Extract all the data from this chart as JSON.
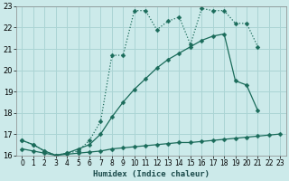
{
  "xlabel": "Humidex (Indice chaleur)",
  "bg_color": "#cceaea",
  "grid_color": "#aad4d4",
  "line_color": "#1a6b5a",
  "xlim": [
    -0.5,
    23.5
  ],
  "ylim": [
    16,
    23
  ],
  "yticks": [
    16,
    17,
    18,
    19,
    20,
    21,
    22,
    23
  ],
  "xticks": [
    0,
    1,
    2,
    3,
    4,
    5,
    6,
    7,
    8,
    9,
    10,
    11,
    12,
    13,
    14,
    15,
    16,
    17,
    18,
    19,
    20,
    21,
    22,
    23
  ],
  "line1_x": [
    0,
    1,
    2,
    3,
    4,
    5,
    6,
    7,
    8,
    9,
    10,
    11,
    12,
    13,
    14,
    15,
    16,
    17,
    18,
    19,
    20,
    21,
    22,
    23
  ],
  "line1_y": [
    16.7,
    16.5,
    16.2,
    16.0,
    16.1,
    16.2,
    16.7,
    17.6,
    20.7,
    20.7,
    22.8,
    22.8,
    21.9,
    22.3,
    22.5,
    21.2,
    22.9,
    22.8,
    22.8,
    22.2,
    22.2,
    21.1,
    null,
    null
  ],
  "line2_x": [
    0,
    1,
    2,
    3,
    4,
    5,
    6,
    7,
    8,
    9,
    10,
    11,
    12,
    13,
    14,
    15,
    16,
    17,
    18,
    19,
    20,
    21,
    22,
    23
  ],
  "line2_y": [
    16.7,
    16.5,
    16.2,
    16.0,
    16.1,
    16.3,
    16.5,
    17.0,
    17.8,
    18.5,
    19.1,
    19.6,
    20.1,
    20.5,
    20.8,
    21.1,
    21.4,
    21.6,
    21.7,
    19.5,
    19.3,
    18.1,
    null,
    null
  ],
  "line3_x": [
    0,
    1,
    2,
    3,
    4,
    5,
    6,
    7,
    8,
    9,
    10,
    11,
    12,
    13,
    14,
    15,
    16,
    17,
    18,
    19,
    20,
    21,
    22,
    23
  ],
  "line3_y": [
    16.3,
    16.2,
    16.1,
    16.0,
    16.05,
    16.1,
    16.15,
    16.2,
    16.3,
    16.35,
    16.4,
    16.45,
    16.5,
    16.55,
    16.6,
    16.6,
    16.65,
    16.7,
    16.75,
    16.8,
    16.85,
    16.9,
    16.95,
    17.0
  ]
}
